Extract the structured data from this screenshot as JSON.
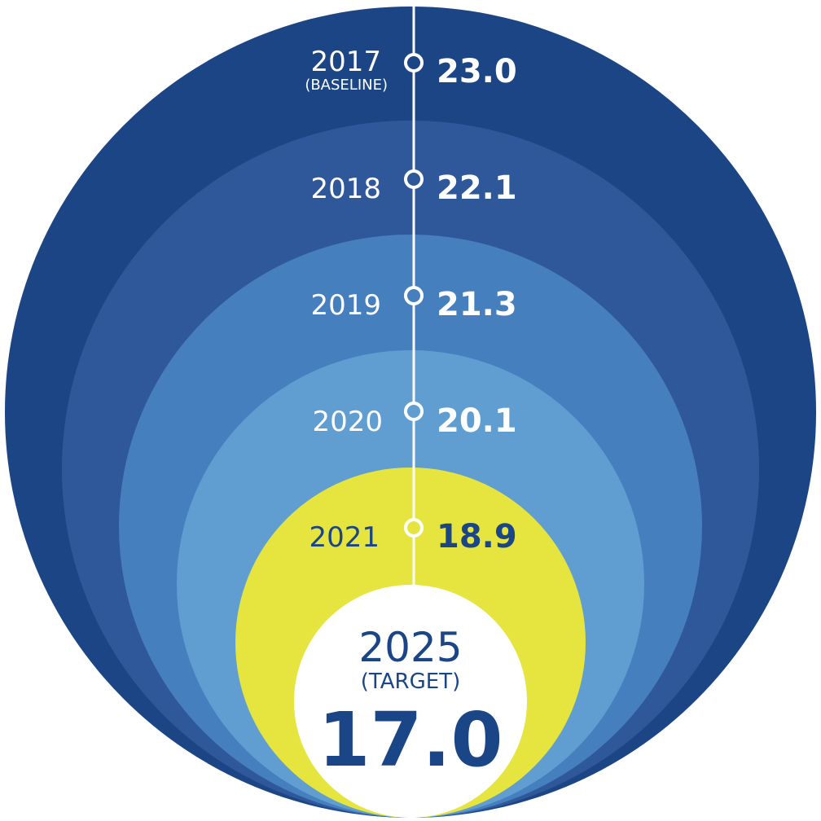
{
  "levels": [
    {
      "year": "2017",
      "note": "(BASELINE)",
      "value": "23.0",
      "color": "#1c4585"
    },
    {
      "year": "2018",
      "note": "",
      "value": "22.1",
      "color": "#2f589b"
    },
    {
      "year": "2019",
      "note": "",
      "value": "21.3",
      "color": "#467fbd"
    },
    {
      "year": "2020",
      "note": "",
      "value": "20.1",
      "color": "#609ed2"
    },
    {
      "year": "2021",
      "note": "",
      "value": "18.9",
      "color": "#e6e43e"
    }
  ],
  "target": {
    "year": "2025",
    "note": "(TARGET)",
    "value": "17.0",
    "color": "#ffffff"
  },
  "colors": {
    "text_light": "#ffffff",
    "text_dark": "#1a4586",
    "line": "#ffffff"
  }
}
